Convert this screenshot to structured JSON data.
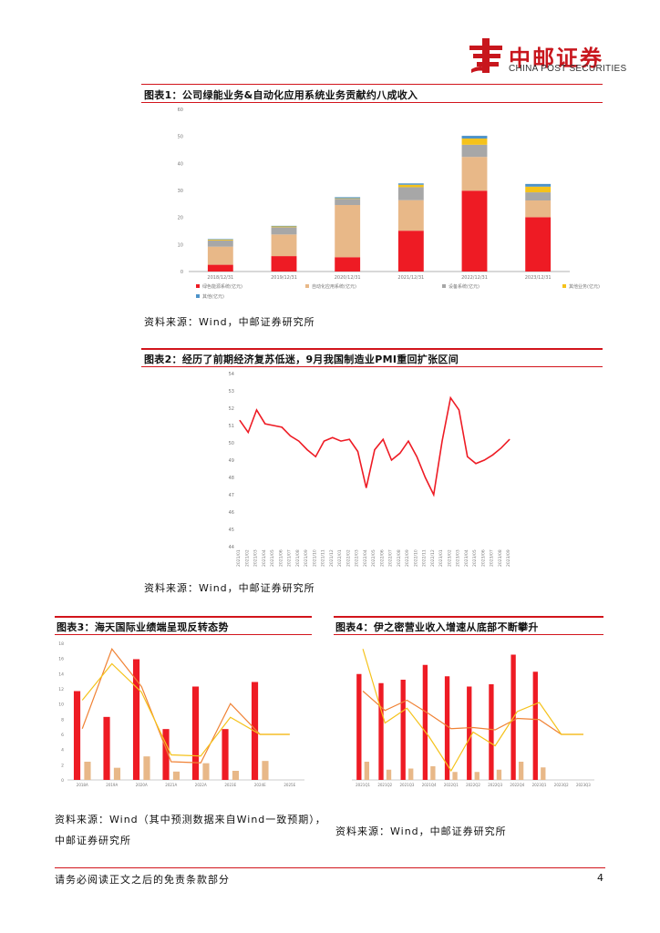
{
  "header": {
    "logo_cn": "中邮证券",
    "logo_en": "CHINA POST SECURITIES",
    "logo_icon": "china-post-logo-icon",
    "brand_color": "#c8161d"
  },
  "figure1": {
    "title": "图表1：公司绿能业务&自动化应用系统业务贡献约八成收入",
    "source": "资料来源：Wind，中邮证券研究所",
    "legend": [
      "绿色能源系统(亿元)",
      "自动化应用系统(亿元)",
      "设备系统(亿元)",
      "其他业务(亿元)",
      "其他(亿元)"
    ]
  },
  "figure2": {
    "title": "图表2：经历了前期经济复苏低迷，9月我国制造业PMI重回扩张区间",
    "source": "资料来源：Wind，中邮证券研究所"
  },
  "figure3": {
    "title": "图表3：海天国际业绩端呈现反转态势",
    "source_line1": "资料来源：Wind（其中预测数据来自Wind一致预期），",
    "source_line2": "中邮证券研究所"
  },
  "figure4": {
    "title": "图表4：伊之密营业收入增速从底部不断攀升",
    "source": "资料来源：Wind，中邮证券研究所"
  },
  "footer": {
    "disclaimer": "请务必阅读正文之后的免责条款部分",
    "page": "4"
  },
  "chart_data": [
    {
      "type": "bar",
      "stacked": true,
      "categories": [
        "2018/12/31",
        "2019/12/31",
        "2020/12/31",
        "2021/12/31",
        "2022/12/31",
        "2023/12/31"
      ],
      "ylim": [
        0,
        60
      ],
      "yticks": [
        "0",
        "10",
        "20",
        "30",
        "40",
        "50",
        "60"
      ],
      "series": [
        {
          "name": "绿色能源系统(亿元)",
          "color": "#ee1b24",
          "values": [
            2.5,
            5.7,
            5.3,
            15.1,
            29.9,
            20.1
          ]
        },
        {
          "name": "自动化应用系统(亿元)",
          "color": "#e8b888",
          "values": [
            6.7,
            8.0,
            19.3,
            11.3,
            12.5,
            6.2
          ]
        },
        {
          "name": "设备系统(亿元)",
          "color": "#a7a7a7",
          "values": [
            2.3,
            2.7,
            2.3,
            4.8,
            4.5,
            3.0
          ]
        },
        {
          "name": "其他业务(亿元)",
          "color": "#f5c21b",
          "values": [
            0.3,
            0.3,
            0.2,
            0.9,
            2.3,
            2.1
          ]
        },
        {
          "name": "其他(亿元)",
          "color": "#4e93c9",
          "values": [
            0.2,
            0.2,
            0.4,
            0.5,
            1.0,
            1.0
          ]
        }
      ],
      "legend_position": "bottom",
      "grid": false
    },
    {
      "type": "line",
      "ylim": [
        44,
        54
      ],
      "yticks": [
        "44",
        "45",
        "46",
        "47",
        "48",
        "49",
        "50",
        "51",
        "52",
        "53",
        "54"
      ],
      "x": [
        "2021/01",
        "2021/02",
        "2021/03",
        "2021/04",
        "2021/05",
        "2021/06",
        "2021/07",
        "2021/08",
        "2021/09",
        "2021/10",
        "2021/11",
        "2021/12",
        "2022/01",
        "2022/02",
        "2022/03",
        "2022/04",
        "2022/05",
        "2022/06",
        "2022/07",
        "2022/08",
        "2022/09",
        "2022/10",
        "2022/11",
        "2022/12",
        "2023/01",
        "2023/02",
        "2023/03",
        "2023/04",
        "2023/05",
        "2023/06",
        "2023/07",
        "2023/08",
        "2023/09"
      ],
      "series": [
        {
          "color": "#ee1b24",
          "values": [
            51.3,
            50.6,
            51.9,
            51.1,
            51.0,
            50.9,
            50.4,
            50.1,
            49.6,
            49.2,
            50.1,
            50.3,
            50.1,
            50.2,
            49.5,
            47.4,
            49.6,
            50.2,
            49.0,
            49.4,
            50.1,
            49.2,
            48.0,
            47.0,
            50.1,
            52.6,
            51.9,
            49.2,
            48.8,
            49.0,
            49.3,
            49.7,
            50.2
          ]
        }
      ],
      "grid": false
    },
    {
      "type": "bar",
      "categories": [
        "2018A",
        "2019A",
        "2020A",
        "2021A",
        "2022A",
        "2023E",
        "2024E",
        "2025E"
      ],
      "ylim_left": [
        0,
        18
      ],
      "ylim_right": [
        -40,
        80
      ],
      "yticks_left": [
        "0",
        "2",
        "4",
        "6",
        "8",
        "10",
        "12",
        "14",
        "16",
        "18"
      ],
      "series": [
        {
          "type": "bar",
          "axis": "left",
          "color": "#ee1b24",
          "values": [
            11.7,
            8.3,
            15.9,
            6.7,
            12.3,
            6.7,
            12.9,
            0
          ]
        },
        {
          "type": "bar",
          "axis": "left",
          "color": "#e8b888",
          "values": [
            2.4,
            1.6,
            3.1,
            1.1,
            2.2,
            1.2,
            2.5,
            0
          ]
        },
        {
          "type": "line",
          "axis": "right",
          "color": "#f08235",
          "values": [
            5,
            75,
            42,
            -24,
            -25,
            27,
            0,
            0
          ]
        },
        {
          "type": "line",
          "axis": "right",
          "color": "#f5c21b",
          "values": [
            30,
            62,
            37,
            -18,
            -19,
            15,
            0,
            0
          ]
        }
      ],
      "grid": false
    },
    {
      "type": "bar",
      "categories": [
        "2021Q1",
        "2021Q2",
        "2021Q3",
        "2021Q4",
        "2022Q1",
        "2022Q2",
        "2022Q3",
        "2022Q4",
        "2023Q1",
        "2023Q2",
        "2023Q3"
      ],
      "ylim_left": [
        0,
        12
      ],
      "ylim_right": [
        -40,
        80
      ],
      "series": [
        {
          "type": "bar",
          "axis": "left",
          "color": "#ee1b24",
          "values": [
            9.3,
            8.5,
            8.8,
            10.1,
            9.1,
            8.2,
            8.4,
            11.0,
            9.5,
            0,
            0
          ]
        },
        {
          "type": "bar",
          "axis": "left",
          "color": "#e8b888",
          "values": [
            1.6,
            0.9,
            1.0,
            1.2,
            0.7,
            0.7,
            0.9,
            1.6,
            1.1,
            0,
            0
          ]
        },
        {
          "type": "line",
          "axis": "right",
          "color": "#f08235",
          "values": [
            38,
            21,
            30,
            18,
            5,
            6,
            4,
            14,
            13,
            0,
            0
          ]
        },
        {
          "type": "line",
          "axis": "right",
          "color": "#f5c21b",
          "values": [
            75,
            10,
            23,
            -2,
            -32,
            2,
            -10,
            20,
            28,
            0,
            0
          ]
        }
      ],
      "grid": false
    }
  ]
}
